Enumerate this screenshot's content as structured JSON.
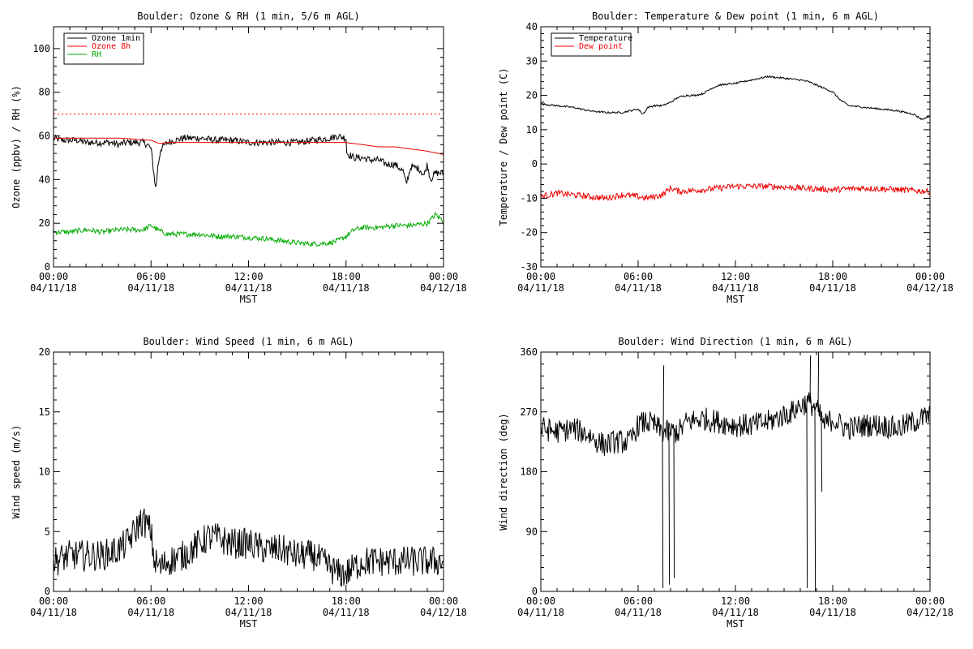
{
  "colors": {
    "background": "#ffffff",
    "axes": "#000000",
    "ozone_1min": "#000000",
    "ozone_8h": "#ee0000",
    "rh": "#00aa00",
    "temperature": "#000000",
    "dew_point": "#ee0000",
    "reference_line": "#ee0000"
  },
  "chart_data": [
    {
      "type": "line",
      "title": "Boulder: Ozone & RH (1 min, 5/6 m AGL)",
      "xlabel": "MST",
      "ylabel": "Ozone (ppbv) / RH (%)",
      "xlim": [
        0,
        24
      ],
      "ylim": [
        0,
        110
      ],
      "yticks": [
        0,
        20,
        40,
        60,
        80,
        100
      ],
      "xticks": [
        {
          "value": 0,
          "time": "00:00",
          "date": "04/11/18"
        },
        {
          "value": 6,
          "time": "06:00",
          "date": "04/11/18"
        },
        {
          "value": 12,
          "time": "12:00",
          "date": "04/11/18"
        },
        {
          "value": 18,
          "time": "18:00",
          "date": "04/11/18"
        },
        {
          "value": 24,
          "time": "00:00",
          "date": "04/12/18"
        }
      ],
      "grid": false,
      "legend_position": "top-left",
      "reference_lines": [
        {
          "y": 70,
          "style": "dotted",
          "color": "#ee0000"
        }
      ],
      "series": [
        {
          "name": "Ozone 1min",
          "color": "#000000",
          "noise": 1.6,
          "x": [
            0,
            0.5,
            1,
            1.5,
            2,
            2.5,
            3,
            3.5,
            4,
            4.5,
            5,
            5.5,
            5.8,
            6,
            6.1,
            6.2,
            6.3,
            6.4,
            6.6,
            7,
            7.5,
            8,
            9,
            10,
            11,
            12,
            13,
            14,
            15,
            16,
            17,
            17.5,
            18,
            18.05,
            18.5,
            19,
            19.5,
            20,
            20.5,
            21,
            21.5,
            21.7,
            22,
            22.5,
            22.8,
            23,
            23.2,
            23.5,
            24
          ],
          "y": [
            59,
            58,
            58,
            58,
            57,
            57,
            57,
            57,
            56,
            57,
            57,
            57,
            56,
            54,
            48,
            41,
            35,
            45,
            54,
            57,
            58,
            59,
            59,
            58,
            58,
            57,
            57,
            57,
            57,
            58,
            59,
            60,
            59,
            52,
            50,
            50,
            49,
            49,
            47,
            47,
            44,
            38,
            46,
            45,
            42,
            47,
            40,
            43,
            43
          ]
        },
        {
          "name": "Ozone 8h",
          "color": "#ee0000",
          "noise": 0,
          "x": [
            0,
            2,
            4,
            6,
            6.5,
            7,
            8,
            10,
            12,
            14,
            16,
            18,
            19,
            20,
            21,
            22,
            23,
            24
          ],
          "y": [
            59,
            59,
            59,
            58,
            56.5,
            57,
            57,
            57,
            57,
            57,
            57,
            57,
            56,
            55,
            55,
            54,
            53,
            51.5
          ]
        },
        {
          "name": "RH",
          "color": "#00aa00",
          "noise": 1.2,
          "x": [
            0,
            1,
            2,
            3,
            4,
            5,
            5.5,
            5.8,
            6,
            6.4,
            7,
            8,
            9,
            10,
            11,
            12,
            13,
            14,
            15,
            16,
            17,
            17.5,
            18,
            18.5,
            19,
            20,
            21,
            22,
            23,
            23.5,
            24
          ],
          "y": [
            16,
            16,
            17,
            16,
            17,
            17,
            17,
            18,
            19,
            17,
            15,
            15,
            15,
            14,
            14,
            13.5,
            13,
            12,
            11,
            10.5,
            11,
            12,
            14,
            17,
            18,
            18,
            19,
            19,
            20,
            24,
            21
          ]
        }
      ]
    },
    {
      "type": "line",
      "title": "Boulder: Temperature & Dew point (1 min, 6 m AGL)",
      "xlabel": "MST",
      "ylabel": "Temperature / Dew point (C)",
      "xlim": [
        0,
        24
      ],
      "ylim": [
        -30,
        40
      ],
      "yticks": [
        -30,
        -20,
        -10,
        0,
        10,
        20,
        30,
        40
      ],
      "xticks": [
        {
          "value": 0,
          "time": "00:00",
          "date": "04/11/18"
        },
        {
          "value": 6,
          "time": "06:00",
          "date": "04/11/18"
        },
        {
          "value": 12,
          "time": "12:00",
          "date": "04/11/18"
        },
        {
          "value": 18,
          "time": "18:00",
          "date": "04/11/18"
        },
        {
          "value": 24,
          "time": "00:00",
          "date": "04/12/18"
        }
      ],
      "grid": false,
      "legend_position": "top-left",
      "series": [
        {
          "name": "Temperature",
          "color": "#000000",
          "noise": 0.25,
          "x": [
            0,
            1,
            2,
            3,
            4,
            5,
            5.5,
            6,
            6.3,
            6.6,
            7,
            7.5,
            8,
            8.5,
            9,
            9.5,
            10,
            10.5,
            11,
            12,
            13,
            14,
            15,
            16,
            16.5,
            17,
            18,
            18.5,
            19,
            20,
            21,
            22,
            23,
            23.5,
            24
          ],
          "y": [
            17.5,
            17,
            16.5,
            15.5,
            15,
            15,
            15.5,
            16,
            14.5,
            16.5,
            17,
            17,
            18,
            19.5,
            20,
            20,
            20.5,
            22,
            23,
            23.5,
            24.5,
            25.5,
            25,
            24.5,
            24,
            23,
            21,
            18.5,
            17,
            16.5,
            16,
            15.5,
            14.5,
            13,
            14
          ]
        },
        {
          "name": "Dew point",
          "color": "#ee0000",
          "noise": 0.9,
          "x": [
            0,
            1,
            2,
            3,
            4,
            5,
            6,
            6.5,
            7,
            7.5,
            8,
            8.5,
            10,
            12,
            14,
            16,
            18,
            20,
            22,
            24
          ],
          "y": [
            -9.5,
            -8.5,
            -9,
            -9.5,
            -10,
            -9,
            -9.5,
            -10,
            -9.5,
            -9,
            -7,
            -8,
            -7.5,
            -6.5,
            -6.5,
            -7,
            -7.5,
            -7,
            -7.5,
            -8
          ]
        }
      ]
    },
    {
      "type": "line",
      "title": "Boulder: Wind Speed (1 min, 6 m AGL)",
      "xlabel": "MST",
      "ylabel": "Wind speed (m/s)",
      "xlim": [
        0,
        24
      ],
      "ylim": [
        0,
        20
      ],
      "yticks": [
        0,
        5,
        10,
        15,
        20
      ],
      "xticks": [
        {
          "value": 0,
          "time": "00:00",
          "date": "04/11/18"
        },
        {
          "value": 6,
          "time": "06:00",
          "date": "04/11/18"
        },
        {
          "value": 12,
          "time": "12:00",
          "date": "04/11/18"
        },
        {
          "value": 18,
          "time": "18:00",
          "date": "04/11/18"
        },
        {
          "value": 24,
          "time": "00:00",
          "date": "04/12/18"
        }
      ],
      "grid": false,
      "series": [
        {
          "name": "",
          "color": "#000000",
          "noise": 1.3,
          "x": [
            0,
            1,
            2,
            3,
            4,
            4.5,
            5,
            5.3,
            5.6,
            6,
            6.2,
            6.6,
            7,
            8,
            9,
            9.5,
            10,
            11,
            12,
            13,
            14,
            15,
            16,
            16.5,
            17,
            17.5,
            18,
            18.5,
            19,
            20,
            21,
            22,
            23,
            24
          ],
          "y": [
            2.5,
            3,
            3,
            3,
            3.5,
            4,
            5,
            5.8,
            5.8,
            5,
            2.5,
            2,
            2.5,
            3,
            4,
            4.5,
            4.5,
            4,
            4,
            3.5,
            3.5,
            3,
            3,
            2.5,
            2,
            1.5,
            1.5,
            2,
            2.5,
            2.5,
            2.5,
            2.5,
            2.5,
            2.5
          ]
        }
      ]
    },
    {
      "type": "line",
      "title": "Boulder: Wind Direction (1 min, 6 m AGL)",
      "xlabel": "MST",
      "ylabel": "Wind direction (deg)",
      "xlim": [
        0,
        24
      ],
      "ylim": [
        0,
        360
      ],
      "yticks": [
        0,
        90,
        180,
        270,
        360
      ],
      "xticks": [
        {
          "value": 0,
          "time": "00:00",
          "date": "04/11/18"
        },
        {
          "value": 6,
          "time": "06:00",
          "date": "04/11/18"
        },
        {
          "value": 12,
          "time": "12:00",
          "date": "04/11/18"
        },
        {
          "value": 18,
          "time": "18:00",
          "date": "04/11/18"
        },
        {
          "value": 24,
          "time": "00:00",
          "date": "04/12/18"
        }
      ],
      "grid": false,
      "spikes": [
        {
          "x": 7.5,
          "y": 5
        },
        {
          "x": 7.55,
          "y": 340
        },
        {
          "x": 7.9,
          "y": 10
        },
        {
          "x": 8.2,
          "y": 20
        },
        {
          "x": 16.4,
          "y": 5
        },
        {
          "x": 16.6,
          "y": 355
        },
        {
          "x": 16.9,
          "y": 0
        },
        {
          "x": 17.1,
          "y": 360
        },
        {
          "x": 17.3,
          "y": 150
        }
      ],
      "series": [
        {
          "name": "",
          "color": "#000000",
          "noise": 18,
          "x": [
            0,
            1,
            2,
            3,
            3.5,
            4,
            4.5,
            5,
            5.5,
            6,
            6.5,
            7,
            7.5,
            8,
            8.5,
            9,
            10,
            11,
            12,
            13,
            14,
            15,
            15.5,
            16,
            16.5,
            17,
            17.5,
            18,
            18.5,
            19,
            20,
            21,
            22,
            23,
            24
          ],
          "y": [
            245,
            240,
            245,
            235,
            225,
            220,
            225,
            225,
            225,
            250,
            255,
            250,
            240,
            240,
            240,
            255,
            260,
            255,
            250,
            250,
            255,
            265,
            270,
            280,
            285,
            275,
            250,
            260,
            250,
            245,
            250,
            250,
            245,
            255,
            265
          ]
        }
      ]
    }
  ]
}
